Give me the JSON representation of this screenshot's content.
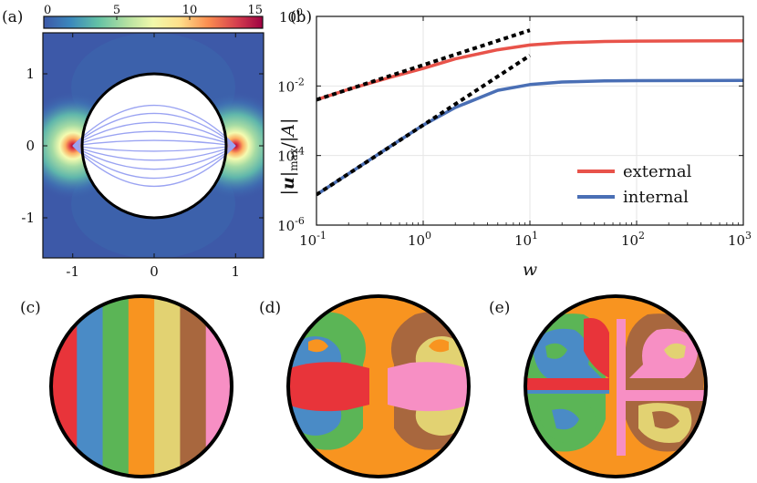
{
  "panel_labels": {
    "a": "(a)",
    "b": "(b)",
    "c": "(c)",
    "d": "(d)",
    "e": "(e)"
  },
  "colors": {
    "external": "#e8534a",
    "internal": "#4a6fb5",
    "streamlines": "#9aa3f2",
    "field_base": "#3d59a8",
    "mix_palette": [
      "#e8343a",
      "#4a8bc6",
      "#5bb556",
      "#f89420",
      "#e2d272",
      "#a8673e",
      "#f78fc4"
    ]
  },
  "chart_data": [
    {
      "type": "heatmap",
      "panel": "(a)",
      "colorbar": {
        "ticks": [
          "0",
          "5",
          "10",
          "15"
        ],
        "range": [
          0,
          15
        ],
        "colormap": "Spectral (reversed)"
      },
      "x_ticks": [
        "-1",
        "0",
        "1"
      ],
      "y_ticks": [
        "1",
        "0",
        "-1"
      ],
      "xlim": [
        -1.4,
        1.4
      ],
      "ylim": [
        -1.4,
        1.4
      ],
      "circle_radius": 1,
      "hotspots": [
        [
          -1,
          0
        ],
        [
          1,
          0
        ]
      ]
    },
    {
      "type": "line",
      "panel": "(b)",
      "xscale": "log",
      "yscale": "log",
      "xlim": [
        0.1,
        1000
      ],
      "ylim": [
        1e-06,
        1
      ],
      "x_ticks": [
        {
          "base": "10",
          "exp": "-1",
          "value": 0.1
        },
        {
          "base": "10",
          "exp": "0",
          "value": 1
        },
        {
          "base": "10",
          "exp": "1",
          "value": 10
        },
        {
          "base": "10",
          "exp": "2",
          "value": 100
        },
        {
          "base": "10",
          "exp": "3",
          "value": 1000
        }
      ],
      "y_ticks": [
        {
          "base": "10",
          "exp": "0",
          "value": 1
        },
        {
          "base": "10",
          "exp": "-2",
          "value": 0.01
        },
        {
          "base": "10",
          "exp": "-4",
          "value": 0.0001
        },
        {
          "base": "10",
          "exp": "-6",
          "value": 1e-06
        }
      ],
      "xlabel": "w",
      "ylabel": "|u|max/|A|",
      "ylabel_parts": {
        "bar_l": "|",
        "u": "u",
        "bar_r": "|",
        "sub": "max",
        "slash": "/",
        "abs_a": "|A|"
      },
      "grid": true,
      "legend_position": "bottom-right",
      "series": [
        {
          "name": "external",
          "x": [
            0.1,
            0.2,
            0.5,
            1,
            2,
            5,
            10,
            20,
            50,
            100,
            1000
          ],
          "y": [
            0.004,
            0.008,
            0.018,
            0.032,
            0.06,
            0.11,
            0.15,
            0.175,
            0.19,
            0.195,
            0.2
          ]
        },
        {
          "name": "internal",
          "x": [
            0.1,
            0.2,
            0.5,
            1,
            2,
            5,
            10,
            20,
            50,
            100,
            1000
          ],
          "y": [
            7.5e-06,
            3e-05,
            0.00019,
            0.00075,
            0.0024,
            0.0075,
            0.011,
            0.013,
            0.014,
            0.0142,
            0.0145
          ]
        },
        {
          "name": "asymptote external",
          "style": "dotted",
          "x": [
            0.1,
            10
          ],
          "y": [
            0.004,
            0.4
          ]
        },
        {
          "name": "asymptote internal",
          "style": "dotted",
          "x": [
            0.1,
            10
          ],
          "y": [
            7.5e-06,
            0.075
          ]
        }
      ]
    },
    {
      "type": "other",
      "panel": "(c)",
      "description_key": "stripes",
      "stripe_count": 7
    }
  ]
}
